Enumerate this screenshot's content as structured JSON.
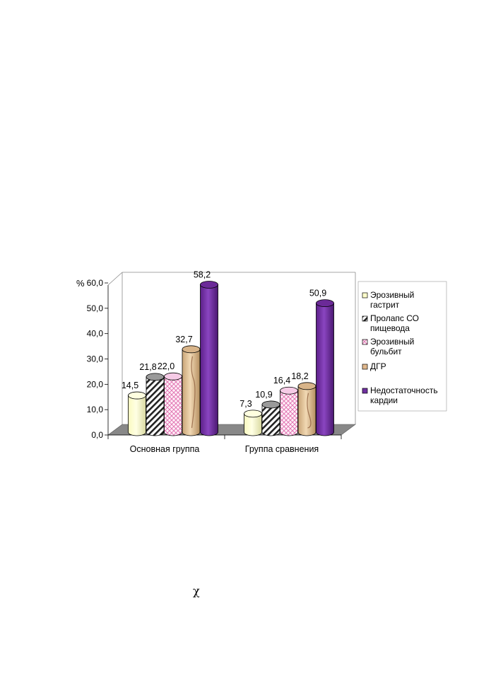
{
  "chart_data": {
    "type": "bar",
    "ylabel": "%",
    "ylim": [
      0,
      60
    ],
    "yticks": [
      "0,0",
      "10,0",
      "20,0",
      "30,0",
      "40,0",
      "50,0",
      "60,0"
    ],
    "categories": [
      "Основная группа",
      "Группа сравнения"
    ],
    "series": [
      {
        "name": "Эрозивный гастрит",
        "values": [
          14.5,
          7.3
        ],
        "labels": [
          "14,5",
          "7,3"
        ],
        "color": "#ffffcc",
        "pattern": "plain"
      },
      {
        "name": "Пролапс СО пищевода",
        "values": [
          21.8,
          10.9
        ],
        "labels": [
          "21,8",
          "10,9"
        ],
        "color": "#ffffff",
        "pattern": "diagonal"
      },
      {
        "name": "Эрозивный бульбит",
        "values": [
          22.0,
          16.4
        ],
        "labels": [
          "22,0",
          "16,4"
        ],
        "color": "#ffe6f4",
        "pattern": "weave"
      },
      {
        "name": "ДГР",
        "values": [
          32.7,
          18.2
        ],
        "labels": [
          "32,7",
          "18,2"
        ],
        "color": "#e7c79f",
        "pattern": "wood"
      },
      {
        "name": "Недостаточность кардии",
        "values": [
          58.2,
          50.9
        ],
        "labels": [
          "58,2",
          "50,9"
        ],
        "color": "#7030a0",
        "pattern": "solid"
      }
    ],
    "legend_position": "right",
    "grid": false,
    "style": "3d-cylinder"
  },
  "footer_symbol": "χ"
}
